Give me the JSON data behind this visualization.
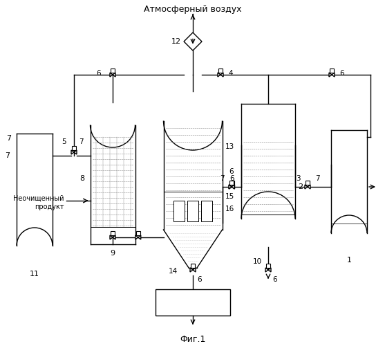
{
  "title_top": "Атмосферный воздух",
  "title_bottom": "Фиг.1",
  "label_unpurified": "Неочищенный\nпродукт",
  "bg_color": "#ffffff",
  "line_color": "#000000",
  "fig_width": 5.57,
  "fig_height": 5.0,
  "dpi": 100
}
